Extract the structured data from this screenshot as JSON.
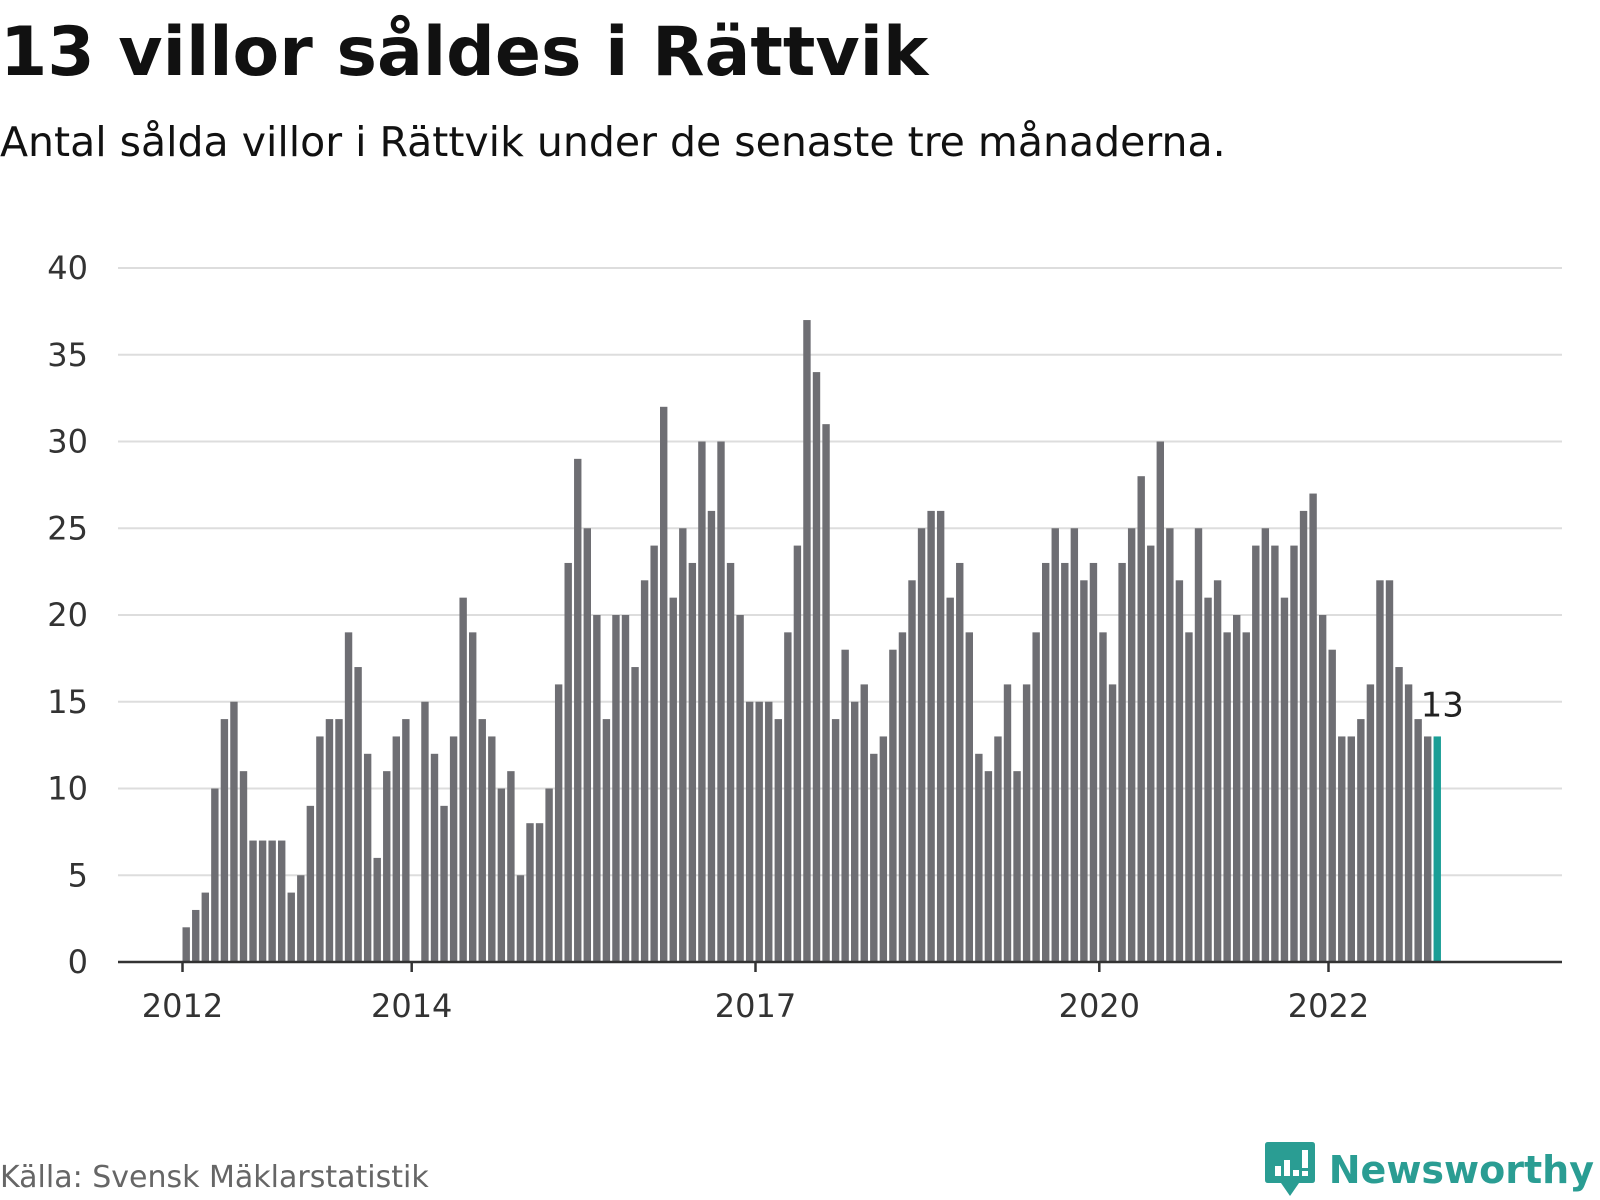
{
  "header": {
    "title": "13 villor såldes i Rättvik",
    "subtitle": "Antal sålda villor i Rättvik under de senaste tre månaderna."
  },
  "footer": {
    "source": "Källa: Svensk Mäklarstatistik",
    "brand": "Newsworthy",
    "brand_icon": "newsworthy-logo-icon"
  },
  "colors": {
    "bar": "#6e6e73",
    "highlight": "#1a9e96",
    "grid": "#dddddd",
    "axis": "#333333",
    "brand": "#2a9d93"
  },
  "chart_data": {
    "type": "bar",
    "title": "13 villor såldes i Rättvik",
    "subtitle": "Antal sålda villor i Rättvik under de senaste tre månaderna.",
    "xlabel": "",
    "ylabel": "",
    "ylim": [
      0,
      40
    ],
    "yticks": [
      0,
      5,
      10,
      15,
      20,
      25,
      30,
      35,
      40
    ],
    "xticks": [
      "2012",
      "2014",
      "2017",
      "2020",
      "2022"
    ],
    "grid": true,
    "start": "2012-01",
    "frequency": "monthly",
    "values": [
      2,
      3,
      4,
      10,
      14,
      15,
      11,
      7,
      7,
      7,
      7,
      4,
      5,
      9,
      13,
      14,
      14,
      19,
      17,
      12,
      6,
      11,
      13,
      14,
      null,
      15,
      12,
      9,
      13,
      21,
      19,
      14,
      13,
      10,
      11,
      5,
      8,
      8,
      10,
      16,
      23,
      29,
      25,
      20,
      14,
      20,
      20,
      17,
      22,
      24,
      32,
      21,
      25,
      23,
      30,
      26,
      30,
      23,
      20,
      15,
      15,
      15,
      14,
      19,
      24,
      37,
      34,
      31,
      14,
      18,
      15,
      16,
      12,
      13,
      18,
      19,
      22,
      25,
      26,
      26,
      21,
      23,
      19,
      12,
      11,
      13,
      16,
      11,
      16,
      19,
      23,
      25,
      23,
      25,
      22,
      23,
      19,
      16,
      23,
      25,
      28,
      24,
      30,
      25,
      22,
      19,
      25,
      21,
      22,
      19,
      20,
      19,
      24,
      25,
      24,
      21,
      24,
      26,
      27,
      20,
      18,
      13,
      13,
      14,
      16,
      22,
      22,
      17,
      16,
      14,
      13,
      13
    ],
    "highlight_index": 131,
    "annotation": {
      "label": "13",
      "value": 13
    }
  }
}
